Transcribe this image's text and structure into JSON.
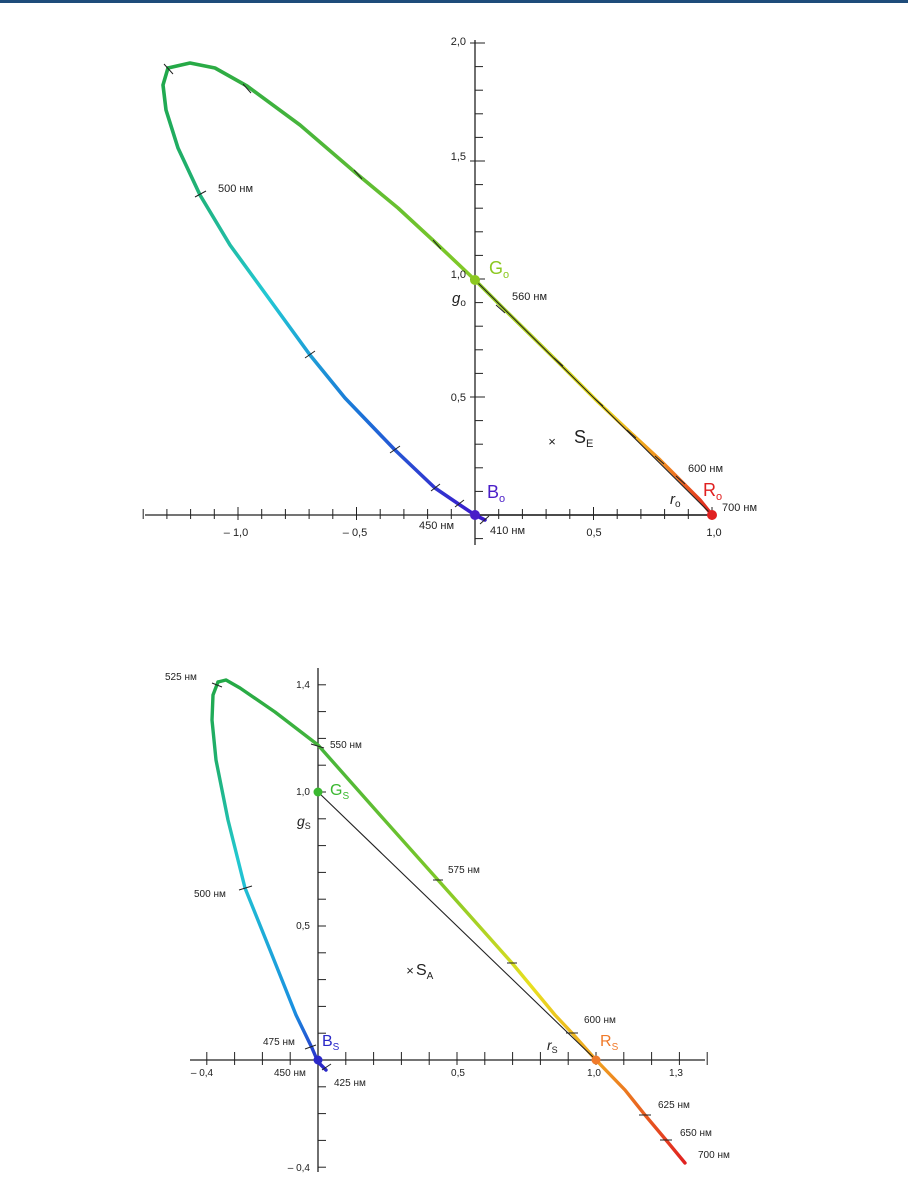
{
  "chart_data": [
    {
      "type": "line",
      "title": "",
      "xlabel": "r",
      "ylabel": "g",
      "xlim": [
        -1.4,
        1.0
      ],
      "ylim": [
        0,
        2.0
      ],
      "x_ticks": [
        {
          "v": -1.0,
          "label": "– 1,0"
        },
        {
          "v": -0.5,
          "label": "– 0,5"
        },
        {
          "v": 0.5,
          "label": "0,5"
        },
        {
          "v": 1.0,
          "label": "1,0"
        }
      ],
      "y_ticks": [
        {
          "v": 0.5,
          "label": "0,5"
        },
        {
          "v": 1.0,
          "label": "1,0"
        },
        {
          "v": 1.5,
          "label": "1,5"
        },
        {
          "v": 2.0,
          "label": "2,0"
        }
      ],
      "locus": [
        [
          0.03,
          -0.02
        ],
        [
          0.0,
          0.0
        ],
        [
          -0.06,
          0.04
        ],
        [
          -0.17,
          0.11
        ],
        [
          -0.33,
          0.26
        ],
        [
          -0.47,
          0.43
        ],
        [
          -0.69,
          0.68
        ],
        [
          -1.0,
          1.1
        ],
        [
          -1.2,
          1.36
        ],
        [
          -1.3,
          1.6
        ],
        [
          -1.31,
          1.75
        ],
        [
          -1.29,
          1.86
        ],
        [
          -1.2,
          1.89
        ],
        [
          -0.96,
          1.79
        ],
        [
          -0.5,
          1.43
        ],
        [
          -0.15,
          1.14
        ],
        [
          0.0,
          1.0
        ],
        [
          0.5,
          0.5
        ],
        [
          0.8,
          0.2
        ],
        [
          1.0,
          0.0
        ]
      ],
      "wavelength_labels": [
        {
          "label": "500 нм",
          "r": -1.15,
          "g": 1.36
        },
        {
          "label": "560 нм",
          "r": 0.13,
          "g": 0.92
        },
        {
          "label": "600 нм",
          "r": 0.88,
          "g": 0.18
        },
        {
          "label": "700 нм",
          "r": 1.05,
          "g": 0.03
        },
        {
          "label": "450 нм",
          "r": -0.24,
          "g": -0.04
        },
        {
          "label": "410 нм",
          "r": 0.07,
          "g": -0.04
        }
      ],
      "primaries": [
        {
          "label": "G",
          "sub": "o",
          "r": 0.0,
          "g": 0.98,
          "color": "#8cc820"
        },
        {
          "label": "R",
          "sub": "o",
          "r": 1.0,
          "g": 0.0,
          "color": "#e02020"
        },
        {
          "label": "B",
          "sub": "o",
          "r": 0.0,
          "g": 0.0,
          "color": "#4a1ec8"
        }
      ],
      "white_point": {
        "label": "S",
        "sub": "E",
        "r": 0.33,
        "g": 0.3
      },
      "axis_labels": [
        {
          "label": "g",
          "sub": "o"
        },
        {
          "label": "r",
          "sub": "o"
        }
      ]
    },
    {
      "type": "line",
      "title": "",
      "xlabel": "r",
      "ylabel": "g",
      "xlim": [
        -0.4,
        1.4
      ],
      "ylim": [
        -0.4,
        1.4
      ],
      "x_ticks": [
        {
          "v": -0.4,
          "label": "– 0,4"
        },
        {
          "v": 0.5,
          "label": "0,5"
        },
        {
          "v": 1.0,
          "label": "1,0"
        },
        {
          "v": 1.3,
          "label": "1,3"
        }
      ],
      "y_ticks": [
        {
          "v": -0.4,
          "label": "– 0,4"
        },
        {
          "v": 0.5,
          "label": "0,5"
        },
        {
          "v": 1.0,
          "label": "1,0"
        },
        {
          "v": 1.4,
          "label": "1,4"
        }
      ],
      "locus": [
        [
          0.03,
          -0.03
        ],
        [
          0.0,
          0.0
        ],
        [
          -0.03,
          0.05
        ],
        [
          -0.12,
          0.24
        ],
        [
          -0.2,
          0.45
        ],
        [
          -0.27,
          0.65
        ],
        [
          -0.37,
          0.95
        ],
        [
          -0.38,
          1.2
        ],
        [
          -0.37,
          1.35
        ],
        [
          -0.33,
          1.4
        ],
        [
          -0.2,
          1.32
        ],
        [
          0.0,
          1.15
        ],
        [
          0.45,
          0.7
        ],
        [
          0.7,
          0.4
        ],
        [
          0.9,
          0.15
        ],
        [
          1.0,
          0.0
        ],
        [
          1.25,
          -0.2
        ],
        [
          1.4,
          -0.37
        ]
      ],
      "wavelength_labels": [
        {
          "label": "525 нм",
          "r": -0.38,
          "g": 1.43
        },
        {
          "label": "550 нм",
          "r": 0.04,
          "g": 1.18
        },
        {
          "label": "500 нм",
          "r": -0.33,
          "g": 0.65
        },
        {
          "label": "575 нм",
          "r": 0.49,
          "g": 0.72
        },
        {
          "label": "600 нм",
          "r": 0.96,
          "g": 0.14
        },
        {
          "label": "475 нм",
          "r": -0.2,
          "g": 0.07
        },
        {
          "label": "450 нм",
          "r": -0.2,
          "g": -0.05
        },
        {
          "label": "425 нм",
          "r": 0.05,
          "g": -0.1
        },
        {
          "label": "625 нм",
          "r": 1.23,
          "g": -0.17
        },
        {
          "label": "650 нм",
          "r": 1.28,
          "g": -0.26
        },
        {
          "label": "700 нм",
          "r": 1.36,
          "g": -0.37
        }
      ],
      "primaries": [
        {
          "label": "G",
          "sub": "S",
          "r": 0.0,
          "g": 1.0,
          "color": "#3ab830"
        },
        {
          "label": "R",
          "sub": "S",
          "r": 1.0,
          "g": 0.0,
          "color": "#f07a2a"
        },
        {
          "label": "B",
          "sub": "S",
          "r": 0.0,
          "g": 0.0,
          "color": "#2a28c8"
        }
      ],
      "white_point": {
        "label": "S",
        "sub": "A",
        "r": 0.34,
        "g": 0.36
      },
      "axis_labels": [
        {
          "label": "g",
          "sub": "S"
        },
        {
          "label": "r",
          "sub": "S"
        }
      ]
    }
  ]
}
